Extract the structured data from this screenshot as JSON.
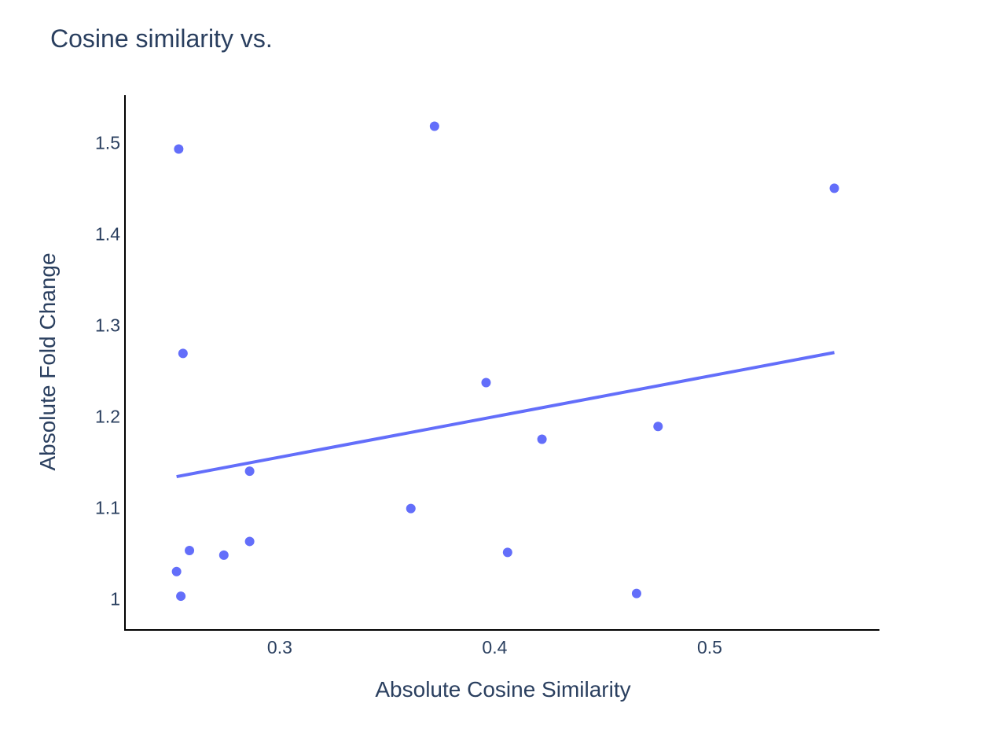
{
  "chart_data": {
    "type": "scatter",
    "title": "Cosine similarity vs.",
    "xlabel": "Absolute Cosine Similarity",
    "ylabel": "Absolute Fold Change",
    "xlim": [
      0.228,
      0.579
    ],
    "ylim": [
      0.966,
      1.552
    ],
    "xticks": [
      0.3,
      0.4,
      0.5
    ],
    "xtick_labels": [
      "0.3",
      "0.4",
      "0.5"
    ],
    "yticks": [
      1.0,
      1.1,
      1.2,
      1.3,
      1.4,
      1.5
    ],
    "ytick_labels": [
      "1",
      "1.1",
      "1.2",
      "1.3",
      "1.4",
      "1.5"
    ],
    "grid": false,
    "marker_color": "#636efa",
    "points": [
      {
        "x": 0.253,
        "y": 1.493
      },
      {
        "x": 0.372,
        "y": 1.518
      },
      {
        "x": 0.558,
        "y": 1.45
      },
      {
        "x": 0.255,
        "y": 1.269
      },
      {
        "x": 0.396,
        "y": 1.237
      },
      {
        "x": 0.422,
        "y": 1.175
      },
      {
        "x": 0.476,
        "y": 1.189
      },
      {
        "x": 0.286,
        "y": 1.14
      },
      {
        "x": 0.361,
        "y": 1.099
      },
      {
        "x": 0.286,
        "y": 1.063
      },
      {
        "x": 0.258,
        "y": 1.053
      },
      {
        "x": 0.274,
        "y": 1.048
      },
      {
        "x": 0.252,
        "y": 1.03
      },
      {
        "x": 0.254,
        "y": 1.003
      },
      {
        "x": 0.406,
        "y": 1.051
      },
      {
        "x": 0.466,
        "y": 1.006
      }
    ],
    "trendline": {
      "x": [
        0.252,
        0.558
      ],
      "y": [
        1.134,
        1.27
      ]
    }
  }
}
